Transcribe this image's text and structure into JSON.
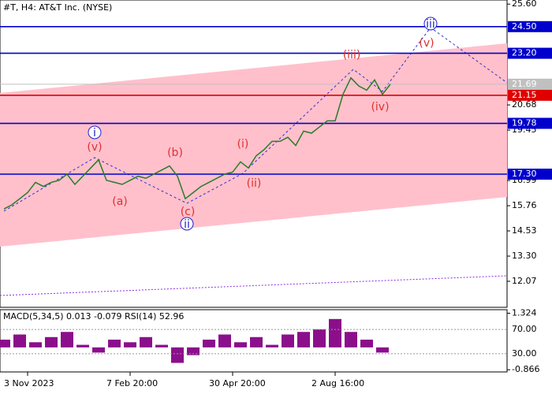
{
  "chart_data": [
    {
      "type": "line",
      "title": "#T, H4:  AT&T Inc. (NYSE)",
      "color": "#2b7a2b",
      "categories": [
        null,
        null,
        null,
        "3 Nov 2023",
        null,
        null,
        null,
        null,
        null,
        null,
        null,
        null,
        null,
        null,
        null,
        null,
        "7 Feb 20:00",
        null,
        null,
        null,
        null,
        null,
        null,
        null,
        null,
        null,
        null,
        null,
        null,
        "30 Apr 20:00",
        null,
        null,
        null,
        null,
        null,
        null,
        null,
        null,
        null,
        null,
        null,
        null,
        "2 Aug 16:00",
        null,
        null,
        null,
        null,
        null,
        null,
        null
      ],
      "values": [
        15.6,
        15.8,
        16.1,
        16.4,
        16.9,
        16.7,
        16.9,
        17.0,
        17.3,
        16.8,
        17.2,
        17.6,
        18.0,
        17.0,
        16.9,
        16.8,
        17.0,
        17.2,
        17.1,
        17.3,
        17.5,
        17.7,
        17.2,
        16.1,
        16.4,
        16.7,
        16.9,
        17.1,
        17.3,
        17.4,
        17.9,
        17.6,
        18.2,
        18.5,
        18.9,
        18.9,
        19.1,
        18.7,
        19.4,
        19.3,
        19.6,
        19.9,
        19.9,
        21.2,
        22.0,
        21.6,
        21.4,
        21.9,
        21.2,
        21.69
      ],
      "ylim": [
        10.8,
        25.8
      ],
      "yticks": [
        {
          "value": 25.6,
          "label": "25.60"
        },
        {
          "value": 20.68,
          "label": "20.68"
        },
        {
          "value": 19.45,
          "label": "19.45"
        },
        {
          "value": 16.99,
          "label": "16.99"
        },
        {
          "value": 15.76,
          "label": "15.76"
        },
        {
          "value": 14.53,
          "label": "14.53"
        },
        {
          "value": 13.3,
          "label": "13.30"
        },
        {
          "value": 12.07,
          "label": "12.07"
        }
      ],
      "levels": [
        {
          "value": 24.5,
          "label": "24.50",
          "color": "#0000cc"
        },
        {
          "value": 23.2,
          "label": "23.20",
          "color": "#0000cc"
        },
        {
          "value": 21.69,
          "label": "21.69",
          "color": "#c0c0c0"
        },
        {
          "value": 21.15,
          "label": "21.15",
          "color": "#e00000"
        },
        {
          "value": 19.78,
          "label": "19.78",
          "color": "#0000cc"
        },
        {
          "value": 17.3,
          "label": "17.30",
          "color": "#0000cc"
        }
      ],
      "annotations": [
        {
          "text": "i",
          "color": "#2020d0"
        },
        {
          "text": "(v)",
          "color": "#e03030"
        },
        {
          "text": "(a)",
          "color": "#e03030"
        },
        {
          "text": "(b)",
          "color": "#e03030"
        },
        {
          "text": "(c)",
          "color": "#e03030"
        },
        {
          "text": "ii",
          "color": "#2020d0"
        },
        {
          "text": "(i)",
          "color": "#e03030"
        },
        {
          "text": "(ii)",
          "color": "#e03030"
        },
        {
          "text": "(iii)",
          "color": "#e03030"
        },
        {
          "text": "(iv)",
          "color": "#e03030"
        },
        {
          "text": "(v)",
          "color": "#e03030"
        },
        {
          "text": "iii",
          "color": "#2020d0"
        }
      ]
    },
    {
      "type": "bar",
      "title": "MACD(5,34,5) 0.013 -0.079 RSI(14) 52.96",
      "color": "#8b0f8b",
      "values": [
        0.3,
        0.5,
        0.2,
        0.4,
        0.6,
        0.1,
        -0.2,
        0.3,
        0.2,
        0.4,
        0.1,
        -0.6,
        -0.3,
        0.3,
        0.5,
        0.2,
        0.4,
        0.1,
        0.5,
        0.6,
        0.7,
        1.1,
        0.6,
        0.3,
        -0.2
      ],
      "ylim": [
        -0.95,
        1.4
      ],
      "yticks": [
        {
          "value": 1.324,
          "label": "1.324"
        },
        {
          "value": -0.866,
          "label": "-0.866"
        }
      ],
      "y2lim": [
        0,
        100
      ],
      "y2ticks": [
        {
          "value": 70,
          "label": "70.00"
        },
        {
          "value": 30,
          "label": "30.00"
        }
      ]
    }
  ]
}
